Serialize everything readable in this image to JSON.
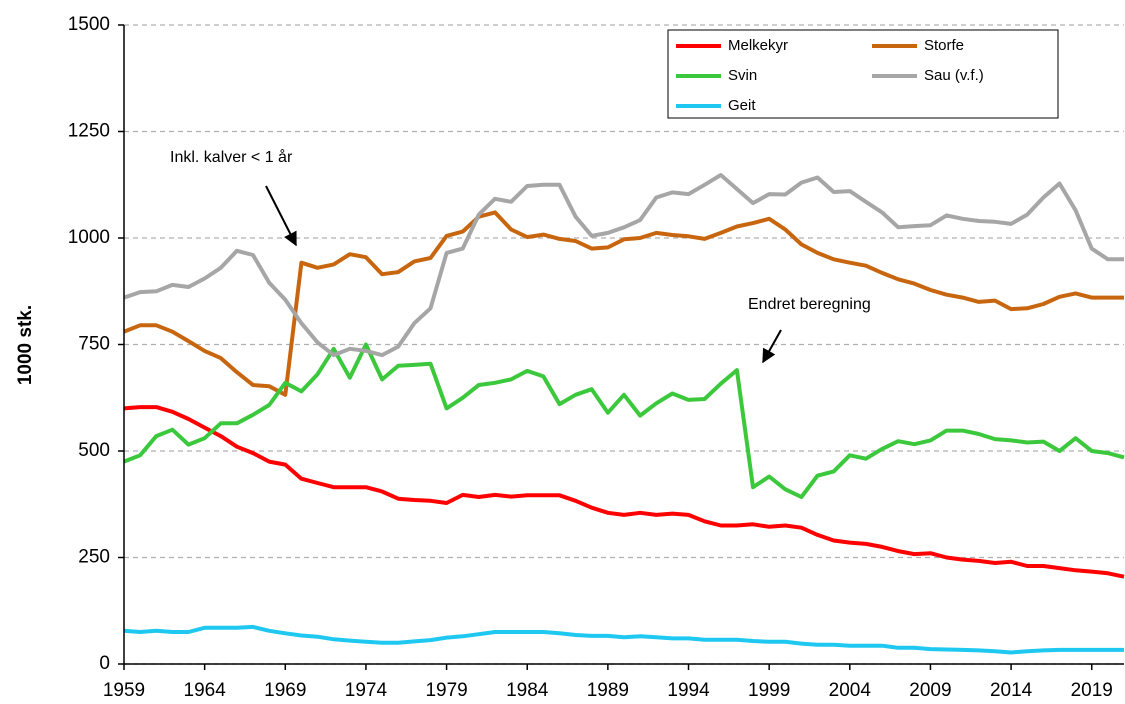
{
  "chart_data": {
    "type": "line",
    "y_label": "1000 stk.",
    "x": [
      1959,
      1960,
      1961,
      1962,
      1963,
      1964,
      1965,
      1966,
      1967,
      1968,
      1969,
      1970,
      1971,
      1972,
      1973,
      1974,
      1975,
      1976,
      1977,
      1978,
      1979,
      1980,
      1981,
      1982,
      1983,
      1984,
      1985,
      1986,
      1987,
      1988,
      1989,
      1990,
      1991,
      1992,
      1993,
      1994,
      1995,
      1996,
      1997,
      1998,
      1999,
      2000,
      2001,
      2002,
      2003,
      2004,
      2005,
      2006,
      2007,
      2008,
      2009,
      2010,
      2011,
      2012,
      2013,
      2014,
      2015,
      2016,
      2017,
      2018,
      2019,
      2020,
      2021
    ],
    "xlim": [
      1959,
      2021
    ],
    "xticks": [
      1959,
      1964,
      1969,
      1974,
      1979,
      1984,
      1989,
      1994,
      1999,
      2004,
      2009,
      2014,
      2019
    ],
    "ylim": [
      0,
      1500
    ],
    "yticks": [
      0,
      250,
      500,
      750,
      1000,
      1250,
      1500
    ],
    "grid": true,
    "legend": "upper right",
    "annotations": [
      "Inkl. kalver < 1 år",
      "Endret beregning"
    ],
    "series": [
      {
        "name": "Melkekyr",
        "color": "#ff0000",
        "values": [
          600,
          603,
          603,
          592,
          575,
          555,
          535,
          510,
          495,
          475,
          468,
          435,
          425,
          415,
          415,
          415,
          405,
          388,
          385,
          383,
          378,
          397,
          392,
          397,
          393,
          396,
          396,
          396,
          383,
          367,
          355,
          350,
          355,
          350,
          353,
          350,
          335,
          325,
          325,
          328,
          322,
          325,
          320,
          303,
          290,
          285,
          282,
          275,
          265,
          258,
          260,
          250,
          245,
          242,
          237,
          240,
          230,
          230,
          225,
          220,
          217,
          213,
          205
        ]
      },
      {
        "name": "Storfe",
        "color": "#c8660f",
        "values": [
          780,
          795,
          795,
          780,
          758,
          735,
          718,
          685,
          655,
          652,
          632,
          942,
          930,
          938,
          962,
          955,
          915,
          920,
          945,
          953,
          1005,
          1015,
          1050,
          1060,
          1020,
          1002,
          1008,
          998,
          993,
          975,
          978,
          997,
          1000,
          1012,
          1007,
          1004,
          998,
          1012,
          1027,
          1035,
          1045,
          1020,
          985,
          965,
          950,
          942,
          935,
          918,
          903,
          893,
          878,
          867,
          860,
          850,
          853,
          833,
          835,
          845,
          862,
          870,
          860,
          860,
          860
        ]
      },
      {
        "name": "Svin",
        "color": "#3cc83c",
        "values": [
          475,
          490,
          535,
          550,
          515,
          530,
          565,
          565,
          585,
          608,
          660,
          640,
          680,
          740,
          672,
          750,
          668,
          700,
          702,
          705,
          600,
          625,
          655,
          660,
          668,
          688,
          675,
          610,
          632,
          645,
          590,
          632,
          583,
          612,
          635,
          620,
          622,
          658,
          690,
          415,
          440,
          410,
          392,
          442,
          452,
          490,
          482,
          505,
          523,
          516,
          525,
          548,
          548,
          540,
          528,
          525,
          520,
          522,
          500,
          530,
          500,
          495,
          485
        ]
      },
      {
        "name": "Sau (v.f.)",
        "color": "#a6a6a6",
        "values": [
          860,
          873,
          875,
          890,
          885,
          905,
          930,
          970,
          960,
          895,
          855,
          800,
          755,
          725,
          740,
          735,
          725,
          745,
          800,
          835,
          965,
          975,
          1055,
          1092,
          1085,
          1122,
          1125,
          1125,
          1050,
          1005,
          1012,
          1025,
          1042,
          1095,
          1107,
          1103,
          1125,
          1148,
          1115,
          1082,
          1103,
          1102,
          1130,
          1142,
          1108,
          1110,
          1085,
          1060,
          1025,
          1028,
          1030,
          1053,
          1045,
          1040,
          1038,
          1033,
          1055,
          1095,
          1128,
          1065,
          975,
          950,
          950
        ]
      },
      {
        "name": "Geit",
        "color": "#1ec8f0",
        "values": [
          78,
          75,
          78,
          75,
          75,
          85,
          85,
          85,
          87,
          78,
          72,
          67,
          64,
          58,
          55,
          52,
          50,
          50,
          53,
          56,
          62,
          65,
          70,
          75,
          75,
          75,
          75,
          72,
          68,
          66,
          66,
          63,
          65,
          63,
          60,
          60,
          57,
          57,
          57,
          54,
          52,
          52,
          48,
          45,
          45,
          43,
          43,
          43,
          38,
          38,
          35,
          34,
          33,
          32,
          30,
          27,
          30,
          32,
          33,
          33,
          33,
          33,
          33
        ]
      }
    ]
  }
}
